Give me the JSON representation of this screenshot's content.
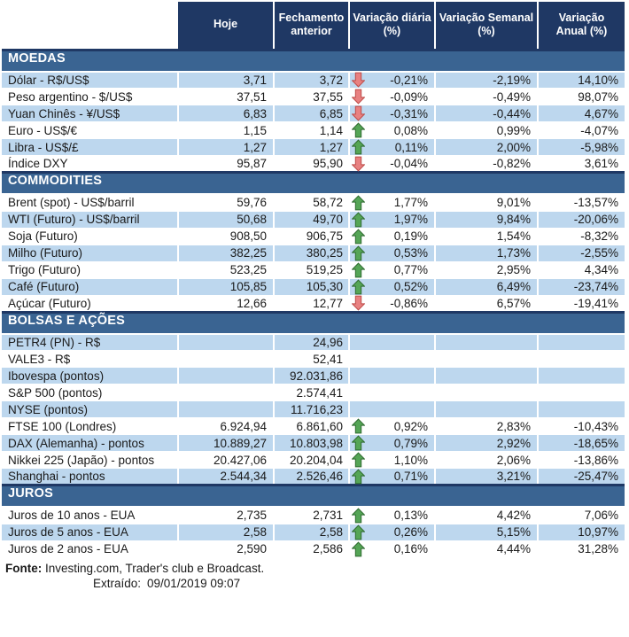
{
  "colors": {
    "header_bg": "#1F3864",
    "section_bg": "#3A6492",
    "row_alt_bg": "#BDD7EE",
    "arrow_up_fill": "#55A556",
    "arrow_up_border": "#2F6B30",
    "arrow_down_fill": "#E88181",
    "arrow_down_border": "#BE4B48"
  },
  "chart_data": {
    "type": "table",
    "columns": [
      "",
      "Hoje",
      "Fechamento\nanterior",
      "Variação diária\n(%)",
      "Variação Semanal\n(%)",
      "Variação\nAnual (%)"
    ],
    "sections": [
      {
        "title": "MOEDAS",
        "slug": "moedas",
        "first_shade": "blue",
        "rows": [
          {
            "label": "Dólar - R$/US$",
            "hoje": "3,71",
            "fechamento": "3,72",
            "arrow": "down",
            "variacao_diaria": "-0,21%",
            "variacao_semanal": "-2,19%",
            "variacao_anual": "14,10%"
          },
          {
            "label": "Peso argentino - $/US$",
            "hoje": "37,51",
            "fechamento": "37,55",
            "arrow": "down",
            "variacao_diaria": "-0,09%",
            "variacao_semanal": "-0,49%",
            "variacao_anual": "98,07%"
          },
          {
            "label": "Yuan Chinês - ¥/US$",
            "hoje": "6,83",
            "fechamento": "6,85",
            "arrow": "down",
            "variacao_diaria": "-0,31%",
            "variacao_semanal": "-0,44%",
            "variacao_anual": "4,67%"
          },
          {
            "label": "Euro - US$/€",
            "hoje": "1,15",
            "fechamento": "1,14",
            "arrow": "up",
            "variacao_diaria": "0,08%",
            "variacao_semanal": "0,99%",
            "variacao_anual": "-4,07%"
          },
          {
            "label": "Libra - US$/£",
            "hoje": "1,27",
            "fechamento": "1,27",
            "arrow": "up",
            "variacao_diaria": "0,11%",
            "variacao_semanal": "2,00%",
            "variacao_anual": "-5,98%"
          },
          {
            "label": "Índice DXY",
            "hoje": "95,87",
            "fechamento": "95,90",
            "arrow": "down",
            "variacao_diaria": "-0,04%",
            "variacao_semanal": "-0,82%",
            "variacao_anual": "3,61%"
          }
        ]
      },
      {
        "title": "COMMODITIES",
        "slug": "commodities",
        "first_shade": "white",
        "rows": [
          {
            "label": "Brent (spot) - US$/barril",
            "hoje": "59,76",
            "fechamento": "58,72",
            "arrow": "up",
            "variacao_diaria": "1,77%",
            "variacao_semanal": "9,01%",
            "variacao_anual": "-13,57%"
          },
          {
            "label": "WTI (Futuro) - US$/barril",
            "hoje": "50,68",
            "fechamento": "49,70",
            "arrow": "up",
            "variacao_diaria": "1,97%",
            "variacao_semanal": "9,84%",
            "variacao_anual": "-20,06%"
          },
          {
            "label": "Soja (Futuro)",
            "hoje": "908,50",
            "fechamento": "906,75",
            "arrow": "up",
            "variacao_diaria": "0,19%",
            "variacao_semanal": "1,54%",
            "variacao_anual": "-8,32%"
          },
          {
            "label": "Milho (Futuro)",
            "hoje": "382,25",
            "fechamento": "380,25",
            "arrow": "up",
            "variacao_diaria": "0,53%",
            "variacao_semanal": "1,73%",
            "variacao_anual": "-2,55%"
          },
          {
            "label": "Trigo (Futuro)",
            "hoje": "523,25",
            "fechamento": "519,25",
            "arrow": "up",
            "variacao_diaria": "0,77%",
            "variacao_semanal": "2,95%",
            "variacao_anual": "4,34%"
          },
          {
            "label": "Café (Futuro)",
            "hoje": "105,85",
            "fechamento": "105,30",
            "arrow": "up",
            "variacao_diaria": "0,52%",
            "variacao_semanal": "6,49%",
            "variacao_anual": "-23,74%"
          },
          {
            "label": "Açúcar (Futuro)",
            "hoje": "12,66",
            "fechamento": "12,77",
            "arrow": "down",
            "variacao_diaria": "-0,86%",
            "variacao_semanal": "6,57%",
            "variacao_anual": "-19,41%"
          }
        ]
      },
      {
        "title": "BOLSAS E AÇÕES",
        "slug": "bolsas-e-acoes",
        "first_shade": "blue",
        "rows": [
          {
            "label": "PETR4 (PN) - R$",
            "hoje": "",
            "fechamento": "24,96",
            "arrow": "",
            "variacao_diaria": "",
            "variacao_semanal": "",
            "variacao_anual": ""
          },
          {
            "label": "VALE3 - R$",
            "hoje": "",
            "fechamento": "52,41",
            "arrow": "",
            "variacao_diaria": "",
            "variacao_semanal": "",
            "variacao_anual": ""
          },
          {
            "label": "Ibovespa (pontos)",
            "hoje": "",
            "fechamento": "92.031,86",
            "arrow": "",
            "variacao_diaria": "",
            "variacao_semanal": "",
            "variacao_anual": ""
          },
          {
            "label": "S&P 500 (pontos)",
            "hoje": "",
            "fechamento": "2.574,41",
            "arrow": "",
            "variacao_diaria": "",
            "variacao_semanal": "",
            "variacao_anual": ""
          },
          {
            "label": "NYSE (pontos)",
            "hoje": "",
            "fechamento": "11.716,23",
            "arrow": "",
            "variacao_diaria": "",
            "variacao_semanal": "",
            "variacao_anual": ""
          },
          {
            "label": "FTSE 100 (Londres)",
            "hoje": "6.924,94",
            "fechamento": "6.861,60",
            "arrow": "up",
            "variacao_diaria": "0,92%",
            "variacao_semanal": "2,83%",
            "variacao_anual": "-10,43%"
          },
          {
            "label": "DAX (Alemanha) - pontos",
            "hoje": "10.889,27",
            "fechamento": "10.803,98",
            "arrow": "up",
            "variacao_diaria": "0,79%",
            "variacao_semanal": "2,92%",
            "variacao_anual": "-18,65%"
          },
          {
            "label": "Nikkei 225 (Japão) - pontos",
            "hoje": "20.427,06",
            "fechamento": "20.204,04",
            "arrow": "up",
            "variacao_diaria": "1,10%",
            "variacao_semanal": "2,06%",
            "variacao_anual": "-13,86%"
          },
          {
            "label": "Shanghai - pontos",
            "hoje": "2.544,34",
            "fechamento": "2.526,46",
            "arrow": "up",
            "variacao_diaria": "0,71%",
            "variacao_semanal": "3,21%",
            "variacao_anual": "-25,47%"
          }
        ]
      },
      {
        "title": "JUROS",
        "slug": "juros",
        "first_shade": "white",
        "rows": [
          {
            "label": "Juros de 10 anos - EUA",
            "hoje": "2,735",
            "fechamento": "2,731",
            "arrow": "up",
            "variacao_diaria": "0,13%",
            "variacao_semanal": "4,42%",
            "variacao_anual": "7,06%"
          },
          {
            "label": "Juros de 5 anos - EUA",
            "hoje": "2,58",
            "fechamento": "2,58",
            "arrow": "up",
            "variacao_diaria": "0,26%",
            "variacao_semanal": "5,15%",
            "variacao_anual": "10,97%"
          },
          {
            "label": "Juros de 2 anos - EUA",
            "hoje": "2,590",
            "fechamento": "2,586",
            "arrow": "up",
            "variacao_diaria": "0,16%",
            "variacao_semanal": "4,44%",
            "variacao_anual": "31,28%"
          }
        ]
      }
    ]
  },
  "footer": {
    "fonte_label": "Fonte:",
    "fonte_text": " Investing.com, Trader's club e Broadcast.",
    "extraido_label": "Extraído:",
    "extraido_value": "09/01/2019 09:07"
  }
}
